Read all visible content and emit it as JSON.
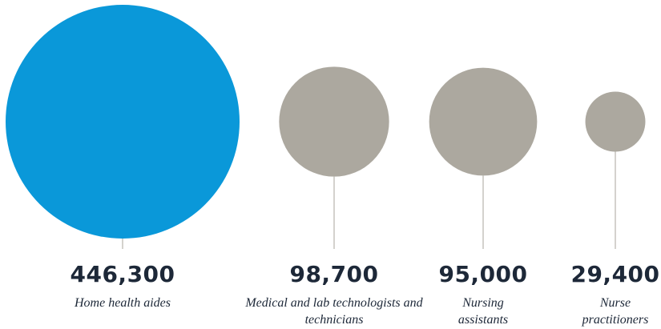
{
  "chart_data": {
    "type": "bubble",
    "categories": [
      "Home health aides",
      "Medical and lab technologists and technicians",
      "Nursing assistants",
      "Nurse practitioners"
    ],
    "values": [
      446300,
      98700,
      95000,
      29400
    ],
    "value_labels": [
      "446,300",
      "98,700",
      "95,000",
      "29,400"
    ],
    "colors": [
      "#0a98d9",
      "#aca89f",
      "#aca89f",
      "#aca89f"
    ]
  }
}
